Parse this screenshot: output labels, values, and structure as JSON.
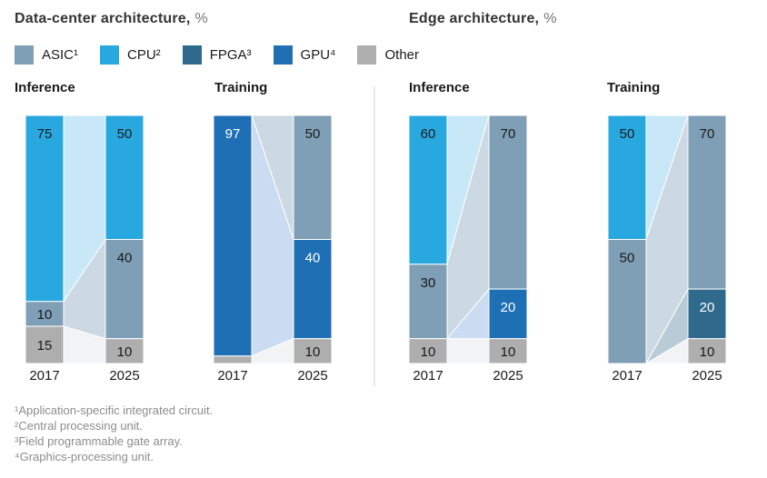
{
  "sections": [
    {
      "title": "Data-center architecture,",
      "unit": "%"
    },
    {
      "title": "Edge architecture,",
      "unit": "%"
    }
  ],
  "legend": [
    {
      "name": "ASIC",
      "label": "ASIC¹"
    },
    {
      "name": "CPU",
      "label": "CPU²"
    },
    {
      "name": "FPGA",
      "label": "FPGA³"
    },
    {
      "name": "GPU",
      "label": "GPU⁴"
    },
    {
      "name": "Other",
      "label": "Other"
    }
  ],
  "palette": {
    "ASIC": {
      "color": "#7e9fb5",
      "flow": "#ccd9e2",
      "text": "#1a1a1a"
    },
    "CPU": {
      "color": "#29a8e0",
      "flow": "#c8e8f8",
      "text": "#1a1a1a"
    },
    "FPGA": {
      "color": "#2f6a8d",
      "flow": "#b8cbd7",
      "text": "#ffffff"
    },
    "GPU": {
      "color": "#1f6fb5",
      "flow": "#cbdcf2",
      "text": "#ffffff"
    },
    "Other": {
      "color": "#aeaeae",
      "flow": "#f2f3f4",
      "text": "#1a1a1a"
    }
  },
  "column_headers": [
    "Inference",
    "Training",
    "Inference",
    "Training"
  ],
  "chart_data": {
    "type": "stacked-bar-flow",
    "years": [
      "2017",
      "2025"
    ],
    "value_unit": "%",
    "value_range": [
      0,
      100
    ],
    "legend_position": "top-left",
    "min_label_value": 10,
    "charts": [
      {
        "section": "Data-center architecture",
        "workload": "Inference",
        "segments": [
          {
            "name": "CPU",
            "values": [
              75,
              50
            ]
          },
          {
            "name": "ASIC",
            "values": [
              10,
              40
            ]
          },
          {
            "name": "Other",
            "values": [
              15,
              10
            ]
          }
        ]
      },
      {
        "section": "Data-center architecture",
        "workload": "Training",
        "segments": [
          {
            "name": "ASIC",
            "values": [
              0,
              50
            ]
          },
          {
            "name": "GPU",
            "values": [
              97,
              40
            ]
          },
          {
            "name": "Other",
            "values": [
              3,
              10
            ]
          }
        ]
      },
      {
        "section": "Edge architecture",
        "workload": "Inference",
        "segments": [
          {
            "name": "CPU",
            "values": [
              60,
              0
            ]
          },
          {
            "name": "ASIC",
            "values": [
              30,
              70
            ]
          },
          {
            "name": "GPU",
            "values": [
              0,
              20
            ]
          },
          {
            "name": "Other",
            "values": [
              10,
              10
            ]
          }
        ]
      },
      {
        "section": "Edge architecture",
        "workload": "Training",
        "segments": [
          {
            "name": "CPU",
            "values": [
              50,
              0
            ]
          },
          {
            "name": "ASIC",
            "values": [
              50,
              70
            ]
          },
          {
            "name": "FPGA",
            "values": [
              0,
              20
            ]
          },
          {
            "name": "Other",
            "values": [
              0,
              10
            ]
          }
        ]
      }
    ]
  },
  "footnotes": [
    "¹Application-specific integrated circuit.",
    "²Central processing unit.",
    "³Field programmable gate array.",
    "⁴Graphics-processing unit."
  ]
}
